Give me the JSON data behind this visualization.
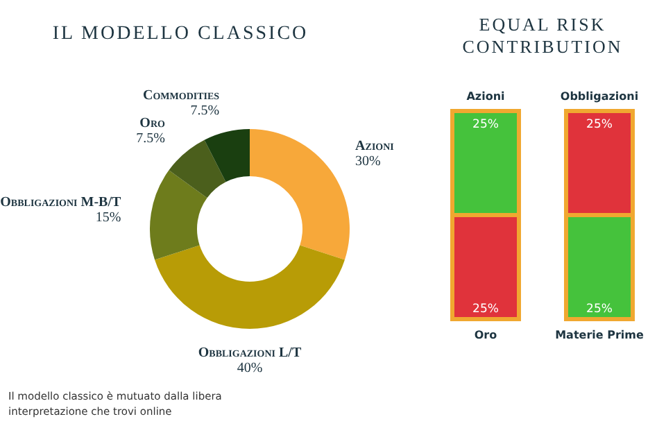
{
  "chart_data": [
    {
      "type": "donut",
      "title": "IL MODELLO CLASSICO",
      "categories": [
        "Azioni",
        "Obbligazioni L/T",
        "Obbligazioni M-B/T",
        "Oro",
        "Commodities"
      ],
      "values": [
        30,
        40,
        15,
        7.5,
        7.5
      ],
      "value_labels": [
        "30%",
        "40%",
        "15%",
        "7.5%",
        "7.5%"
      ],
      "colors": [
        "#f7a83a",
        "#b89c06",
        "#6e7c1c",
        "#4b5f1c",
        "#1a3f10"
      ],
      "annotations": [
        "Il modello classico è mutuato dalla libera interpretazione che trovi online"
      ]
    },
    {
      "type": "other",
      "title": "EQUAL RISK CONTRIBUTION",
      "categories": [
        "Azioni",
        "Obbligazioni",
        "Oro",
        "Materie Prime"
      ],
      "values": [
        25,
        25,
        25,
        25
      ],
      "value_labels": [
        "25%",
        "25%",
        "25%",
        "25%"
      ],
      "colors": [
        "#45c23c",
        "#e0333b",
        "#e0333b",
        "#45c23c"
      ]
    }
  ]
}
